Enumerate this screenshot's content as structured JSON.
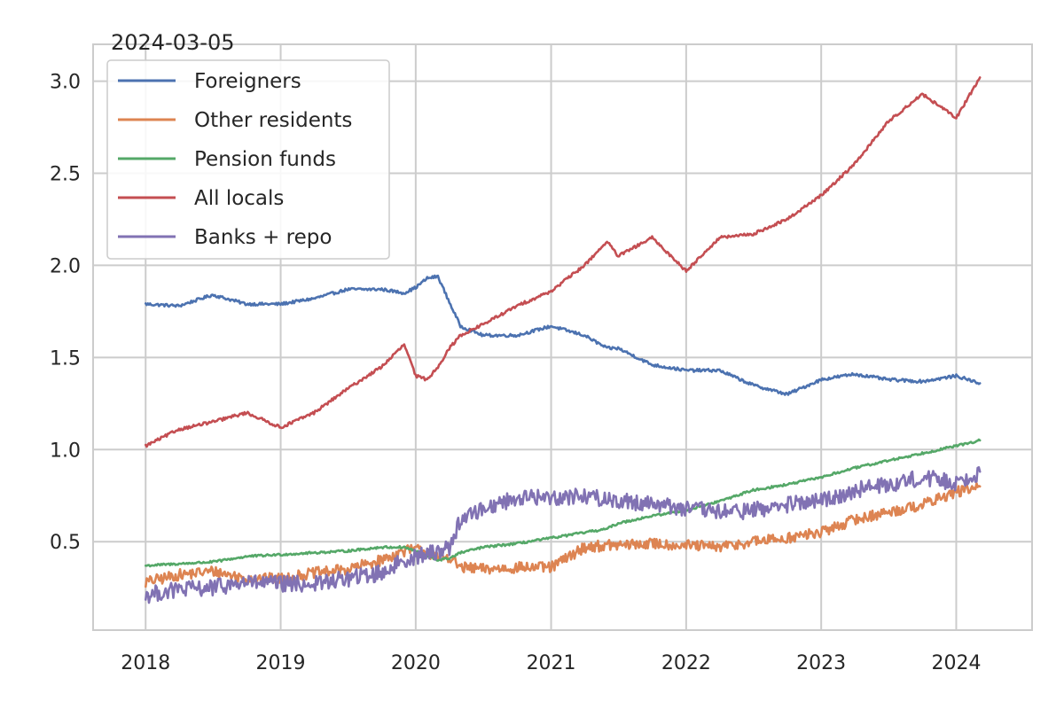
{
  "chart_data": {
    "type": "line",
    "title": "2024-03-05",
    "xlabel": "",
    "ylabel": "",
    "x_ticks": [
      "2018",
      "2019",
      "2020",
      "2021",
      "2022",
      "2023",
      "2024"
    ],
    "y_ticks": [
      "0.5",
      "1.0",
      "1.5",
      "2.0",
      "2.5",
      "3.0"
    ],
    "xlim": [
      "2017-08-12",
      "2024-07-24"
    ],
    "ylim": [
      0.02,
      3.2
    ],
    "grid": true,
    "legend_position": "top-left",
    "x": [
      "2018-01-01",
      "2018-04-01",
      "2018-07-01",
      "2018-10-01",
      "2019-01-01",
      "2019-04-01",
      "2019-07-01",
      "2019-10-01",
      "2019-12-01",
      "2020-01-01",
      "2020-02-01",
      "2020-03-01",
      "2020-04-01",
      "2020-05-01",
      "2020-07-01",
      "2020-10-01",
      "2021-01-01",
      "2021-04-01",
      "2021-06-01",
      "2021-07-01",
      "2021-10-01",
      "2022-01-01",
      "2022-04-01",
      "2022-07-01",
      "2022-10-01",
      "2023-01-01",
      "2023-04-01",
      "2023-07-01",
      "2023-10-01",
      "2024-01-01",
      "2024-03-05"
    ],
    "series": [
      {
        "name": "Foreigners",
        "color": "#4c72b0",
        "values": [
          1.79,
          1.78,
          1.84,
          1.79,
          1.79,
          1.82,
          1.87,
          1.87,
          1.85,
          1.88,
          1.93,
          1.94,
          1.8,
          1.67,
          1.62,
          1.62,
          1.67,
          1.62,
          1.55,
          1.55,
          1.46,
          1.43,
          1.43,
          1.35,
          1.3,
          1.38,
          1.41,
          1.38,
          1.37,
          1.4,
          1.36
        ]
      },
      {
        "name": "Other residents",
        "color": "#dd8452",
        "values": [
          0.28,
          0.32,
          0.34,
          0.3,
          0.3,
          0.33,
          0.35,
          0.4,
          0.45,
          0.46,
          0.44,
          0.41,
          0.42,
          0.36,
          0.35,
          0.36,
          0.36,
          0.47,
          0.48,
          0.48,
          0.49,
          0.48,
          0.47,
          0.5,
          0.52,
          0.55,
          0.62,
          0.66,
          0.7,
          0.77,
          0.8
        ]
      },
      {
        "name": "Pension funds",
        "color": "#55a868",
        "values": [
          0.37,
          0.38,
          0.39,
          0.42,
          0.43,
          0.44,
          0.45,
          0.47,
          0.47,
          0.45,
          0.42,
          0.4,
          0.41,
          0.44,
          0.47,
          0.49,
          0.52,
          0.55,
          0.57,
          0.6,
          0.64,
          0.67,
          0.72,
          0.78,
          0.81,
          0.85,
          0.9,
          0.94,
          0.98,
          1.02,
          1.05
        ]
      },
      {
        "name": "All locals",
        "color": "#c44e52",
        "values": [
          1.02,
          1.11,
          1.15,
          1.2,
          1.12,
          1.2,
          1.33,
          1.45,
          1.57,
          1.4,
          1.38,
          1.45,
          1.55,
          1.62,
          1.68,
          1.78,
          1.86,
          2.0,
          2.13,
          2.05,
          2.15,
          1.97,
          2.15,
          2.17,
          2.25,
          2.38,
          2.55,
          2.78,
          2.93,
          2.8,
          3.02
        ]
      },
      {
        "name": "Banks + repo",
        "color": "#8172b3",
        "values": [
          0.21,
          0.24,
          0.25,
          0.28,
          0.27,
          0.27,
          0.3,
          0.33,
          0.4,
          0.42,
          0.43,
          0.45,
          0.47,
          0.62,
          0.68,
          0.74,
          0.74,
          0.75,
          0.73,
          0.72,
          0.71,
          0.68,
          0.66,
          0.67,
          0.7,
          0.72,
          0.78,
          0.81,
          0.85,
          0.82,
          0.88
        ]
      }
    ]
  }
}
